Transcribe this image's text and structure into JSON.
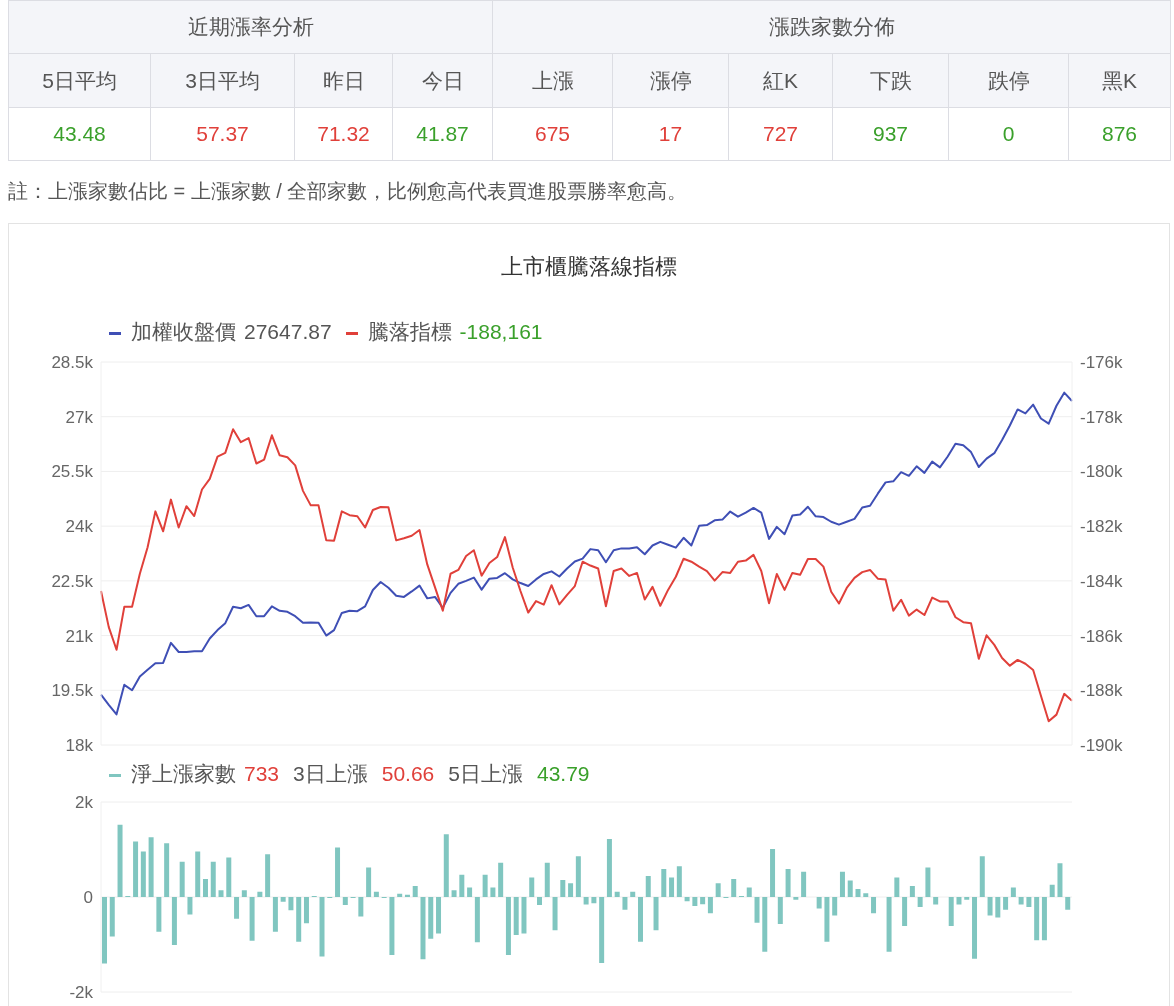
{
  "chart_data": [
    {
      "type": "other",
      "categories": [
        "5日平均",
        "3日平均",
        "昨日",
        "今日",
        "上漲",
        "漲停",
        "紅K",
        "下跌",
        "跌停",
        "黑K"
      ],
      "values": [
        43.48,
        57.37,
        71.32,
        41.87,
        675,
        17,
        727,
        937,
        0,
        876
      ],
      "data_labels": true,
      "annotations": [
        "近期漲率分析",
        "漲跌家數分佈",
        "註：上漲家數佔比 = 上漲家數 / 全部家數，比例愈高代表買進股票勝率愈高。"
      ]
    },
    {
      "type": "line",
      "title": "上市櫃騰落線指標",
      "categories": [
        null,
        null,
        null,
        null,
        null,
        null,
        null,
        null,
        null,
        null,
        null,
        null,
        null,
        null,
        null,
        null,
        null,
        null,
        null,
        null,
        null,
        null,
        null,
        null,
        null,
        null,
        null,
        null,
        null,
        null,
        null,
        null,
        null,
        null,
        null,
        null,
        null,
        null,
        null,
        null,
        null,
        null,
        null,
        null,
        null,
        null,
        null,
        null,
        null,
        null,
        null,
        null,
        null,
        null,
        null,
        null,
        null,
        null,
        null,
        null,
        null,
        null,
        null,
        null,
        null,
        null,
        null,
        null,
        null,
        null,
        null,
        null,
        null,
        null,
        null,
        null,
        null,
        null,
        null,
        null,
        null,
        null,
        null,
        null,
        null,
        null,
        null,
        null,
        null,
        null,
        null,
        null,
        null,
        null,
        null,
        null,
        null,
        null,
        null,
        null,
        null,
        null,
        null,
        null,
        null,
        null,
        null,
        null,
        null,
        null,
        null,
        null,
        null,
        null,
        null,
        null,
        null,
        null,
        null,
        null,
        null,
        null,
        null,
        null,
        null,
        null
      ],
      "series": [
        {
          "name": "加權收盤價",
          "color": "#3f4fb5",
          "values": [
            19380,
            19100,
            18840,
            19650,
            19500,
            19880,
            20060,
            20240,
            20250,
            20800,
            20550,
            20550,
            20570,
            20570,
            20920,
            21150,
            21340,
            21790,
            21750,
            21840,
            21530,
            21530,
            21800,
            21680,
            21650,
            21530,
            21350,
            21360,
            21350,
            21000,
            21150,
            21620,
            21680,
            21670,
            21800,
            22250,
            22470,
            22310,
            22090,
            22060,
            22210,
            22370,
            22020,
            22060,
            21760,
            22170,
            22420,
            22500,
            22590,
            22260,
            22560,
            22580,
            22710,
            22540,
            22440,
            22360,
            22540,
            22690,
            22760,
            22620,
            22840,
            23030,
            23110,
            23370,
            23340,
            23010,
            23340,
            23390,
            23390,
            23420,
            23230,
            23470,
            23570,
            23490,
            23410,
            23680,
            23470,
            24010,
            24030,
            24160,
            24180,
            24400,
            24260,
            24370,
            24500,
            24370,
            23650,
            23980,
            23780,
            24290,
            24320,
            24530,
            24270,
            24250,
            24120,
            24040,
            24120,
            24200,
            24510,
            24560,
            24890,
            25200,
            25230,
            25480,
            25380,
            25640,
            25460,
            25770,
            25610,
            25910,
            26260,
            26220,
            26030,
            25620,
            25850,
            26000,
            26360,
            26760,
            27200,
            27090,
            27330,
            26950,
            26810,
            27300,
            27660,
            27430
          ]
        },
        {
          "name": "騰落指標",
          "color": "#e0403a",
          "axis": "y2",
          "values": [
            -184370,
            -185690,
            -186520,
            -184950,
            -184950,
            -183740,
            -182770,
            -181460,
            -182190,
            -181030,
            -182050,
            -181270,
            -181630,
            -180660,
            -180270,
            -179460,
            -179320,
            -178460,
            -178930,
            -178780,
            -179710,
            -179570,
            -178680,
            -179410,
            -179480,
            -179780,
            -180710,
            -181240,
            -181240,
            -182520,
            -182530,
            -181460,
            -181600,
            -181640,
            -182050,
            -181410,
            -181300,
            -181310,
            -182520,
            -182440,
            -182350,
            -182140,
            -183400,
            -184240,
            -185090,
            -183740,
            -183600,
            -183090,
            -182880,
            -183810,
            -183350,
            -183130,
            -182400,
            -183510,
            -184370,
            -185160,
            -184740,
            -184870,
            -184160,
            -184860,
            -184510,
            -184190,
            -183300,
            -183440,
            -183550,
            -184930,
            -183640,
            -183550,
            -183820,
            -183710,
            -184680,
            -184220,
            -184910,
            -184330,
            -183850,
            -183190,
            -183300,
            -183480,
            -183640,
            -183990,
            -183680,
            -183710,
            -183300,
            -183260,
            -183050,
            -183640,
            -184820,
            -183750,
            -184330,
            -183710,
            -183780,
            -183200,
            -183200,
            -183480,
            -184400,
            -184830,
            -184260,
            -183890,
            -183680,
            -183600,
            -183920,
            -183950,
            -185090,
            -184690,
            -185270,
            -185050,
            -185250,
            -184610,
            -184750,
            -184750,
            -185330,
            -185510,
            -185550,
            -186850,
            -185990,
            -186340,
            -186820,
            -187100,
            -186890,
            -187030,
            -187260,
            -188200,
            -189130,
            -188890,
            -188130,
            -188380
          ]
        }
      ],
      "ylim": [
        18000,
        28500
      ],
      "yticks": [
        {
          "value": 18000,
          "label": "18k"
        },
        {
          "value": 19500,
          "label": "19.5k"
        },
        {
          "value": 21000,
          "label": "21k"
        },
        {
          "value": 22500,
          "label": "22.5k"
        },
        {
          "value": 24000,
          "label": "24k"
        },
        {
          "value": 25500,
          "label": "25.5k"
        },
        {
          "value": 27000,
          "label": "27k"
        },
        {
          "value": 28500,
          "label": "28.5k"
        }
      ],
      "y2lim": [
        -190000,
        -176000
      ],
      "y2ticks": [
        {
          "value": -190000,
          "label": "-190k"
        },
        {
          "value": -188000,
          "label": "-188k"
        },
        {
          "value": -186000,
          "label": "-186k"
        },
        {
          "value": -184000,
          "label": "-184k"
        },
        {
          "value": -182000,
          "label": "-182k"
        },
        {
          "value": -180000,
          "label": "-180k"
        },
        {
          "value": -178000,
          "label": "-178k"
        },
        {
          "value": -176000,
          "label": "-176k"
        }
      ],
      "grid": "y",
      "legend": "top",
      "tick_labels": "y",
      "annotations": [
        "27647.87",
        "-188,161"
      ]
    },
    {
      "type": "bar",
      "categories": [
        null,
        null,
        null,
        null,
        null,
        null,
        null,
        null,
        null,
        null,
        null,
        null,
        null,
        null,
        null,
        null,
        null,
        null,
        null,
        null,
        null,
        null,
        null,
        null,
        null,
        null,
        null,
        null,
        null,
        null,
        null,
        null,
        null,
        null,
        null,
        null,
        null,
        null,
        null,
        null,
        null,
        null,
        null,
        null,
        null,
        null,
        null,
        null,
        null,
        null,
        null,
        null,
        null,
        null,
        null,
        null,
        null,
        null,
        null,
        null,
        null,
        null,
        null,
        null,
        null,
        null,
        null,
        null,
        null,
        null,
        null,
        null,
        null,
        null,
        null,
        null,
        null,
        null,
        null,
        null,
        null,
        null,
        null,
        null,
        null,
        null,
        null,
        null,
        null,
        null,
        null,
        null,
        null,
        null,
        null,
        null,
        null,
        null,
        null,
        null,
        null,
        null,
        null,
        null,
        null,
        null,
        null,
        null,
        null,
        null,
        null,
        null,
        null,
        null,
        null,
        null,
        null,
        null,
        null,
        null,
        null,
        null,
        null,
        null,
        null
      ],
      "series": [
        {
          "name": "淨上漲家數",
          "color": "#80c6c0",
          "values": [
            -1400,
            -830,
            1520,
            20,
            1170,
            960,
            1260,
            -730,
            1130,
            -1010,
            740,
            -370,
            960,
            380,
            740,
            140,
            830,
            -460,
            140,
            -920,
            110,
            900,
            -730,
            -100,
            -280,
            -940,
            -550,
            20,
            -1250,
            -20,
            1040,
            -170,
            -20,
            -410,
            620,
            110,
            -20,
            -1220,
            70,
            50,
            230,
            -1310,
            -880,
            -770,
            1320,
            140,
            470,
            200,
            -950,
            470,
            200,
            720,
            -1220,
            -800,
            -770,
            410,
            -170,
            720,
            -700,
            360,
            290,
            860,
            -160,
            -130,
            -1390,
            1220,
            110,
            -270,
            110,
            -940,
            440,
            -700,
            590,
            410,
            650,
            -90,
            -190,
            -150,
            -340,
            290,
            -20,
            380,
            20,
            200,
            -540,
            -1150,
            1010,
            -570,
            590,
            -60,
            530,
            0,
            -240,
            -940,
            -390,
            530,
            350,
            170,
            80,
            -340,
            0,
            -1150,
            410,
            -610,
            230,
            -210,
            620,
            -160,
            0,
            -610,
            -160,
            -60,
            -1300,
            860,
            -390,
            -430,
            -270,
            200,
            -160,
            -210,
            -910,
            -910,
            260,
            710,
            -270
          ]
        }
      ],
      "ylim": [
        -2000,
        2000
      ],
      "yticks": [
        {
          "value": -2000,
          "label": "-2k"
        },
        0,
        {
          "value": 2000,
          "label": "2k"
        }
      ],
      "grid": "y",
      "legend": "top",
      "tick_labels": "y",
      "annotations": [
        "733",
        "3日上漲",
        "50.66",
        "5日上漲",
        "43.79"
      ]
    }
  ]
}
